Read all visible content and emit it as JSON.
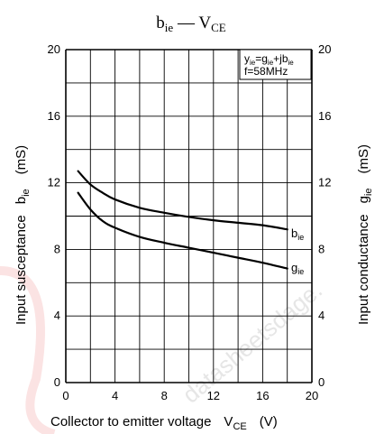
{
  "chart_data": {
    "type": "line",
    "title": "b",
    "title_sub": "ie",
    "title_dash": " — V",
    "title_sub2": "CE",
    "xlim": [
      0,
      20
    ],
    "ylim": [
      0,
      20
    ],
    "x_ticks": [
      0,
      4,
      8,
      12,
      16,
      20
    ],
    "y_ticks": [
      0,
      4,
      8,
      12,
      16,
      20
    ],
    "grid": true,
    "xlabel": "Collector to emitter voltage",
    "xlabel_sym": "V",
    "xlabel_sub": "CE",
    "xlabel_unit": "(V)",
    "ylabel_left": "Input susceptance",
    "ylabel_left_sym": "b",
    "ylabel_left_sub": "ie",
    "ylabel_left_unit": "(mS)",
    "ylabel_right": "Input conductance",
    "ylabel_right_sym": "g",
    "ylabel_right_sub": "ie",
    "ylabel_right_unit": "(mS)",
    "annotation_line1": "y",
    "annotation_line1_sub": "ie",
    "annotation_line1_mid": "=g",
    "annotation_line1_sub2": "ie",
    "annotation_line1_end": "+jb",
    "annotation_line1_sub3": "ie",
    "annotation_line2": "f=58MHz",
    "watermark": "datasheetsdage.",
    "series": [
      {
        "name": "b",
        "name_sub": "ie",
        "x": [
          1,
          2,
          3,
          4,
          6,
          8,
          10,
          12,
          14,
          16,
          18
        ],
        "y": [
          12.7,
          11.9,
          11.4,
          11.0,
          10.5,
          10.2,
          9.95,
          9.75,
          9.6,
          9.45,
          9.2
        ]
      },
      {
        "name": "g",
        "name_sub": "ie",
        "x": [
          1,
          2,
          3,
          4,
          6,
          8,
          10,
          12,
          14,
          16,
          18
        ],
        "y": [
          11.4,
          10.4,
          9.7,
          9.3,
          8.75,
          8.4,
          8.1,
          7.8,
          7.5,
          7.2,
          6.85
        ]
      }
    ]
  }
}
